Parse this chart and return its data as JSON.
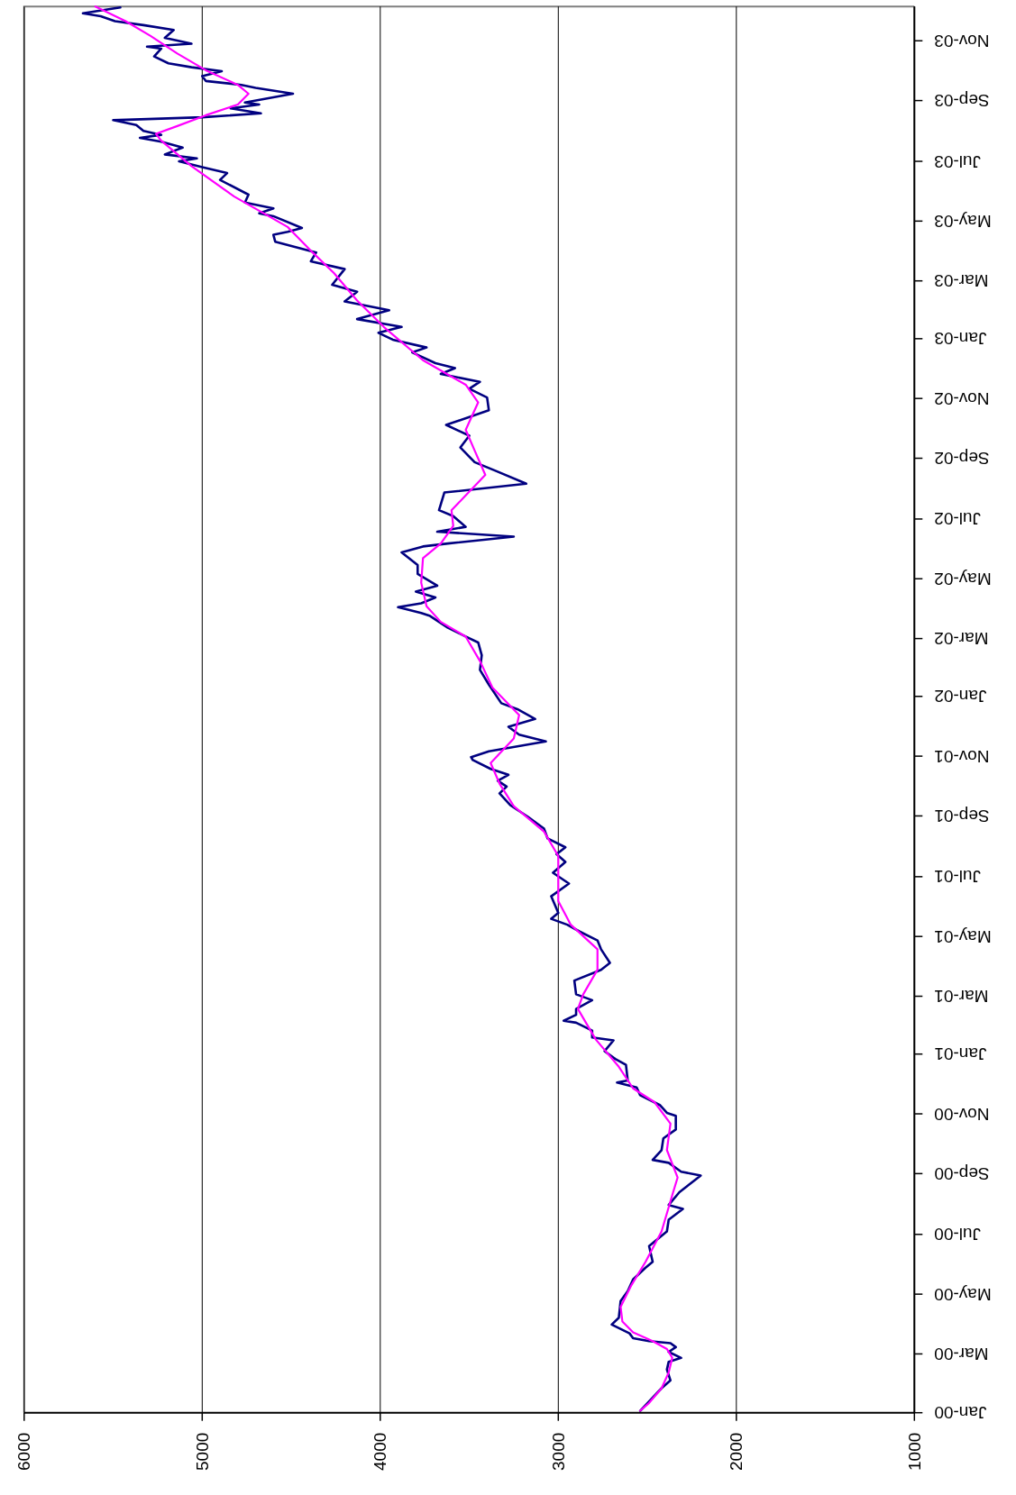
{
  "chart_data": {
    "type": "line",
    "orientation": "horizontal",
    "ylim": [
      "2000-01-01",
      "2003-12-06"
    ],
    "yticks": [
      {
        "value": "2000-01-01",
        "label": "Jan-00"
      },
      {
        "value": "2000-03-01",
        "label": "Mar-00"
      },
      {
        "value": "2000-05-01",
        "label": "May-00"
      },
      {
        "value": "2000-07-01",
        "label": "Jul-00"
      },
      {
        "value": "2000-09-01",
        "label": "Sep-00"
      },
      {
        "value": "2000-11-01",
        "label": "Nov-00"
      },
      {
        "value": "2001-01-01",
        "label": "Jan-01"
      },
      {
        "value": "2001-03-01",
        "label": "Mar-01"
      },
      {
        "value": "2001-05-01",
        "label": "May-01"
      },
      {
        "value": "2001-07-01",
        "label": "Jul-01"
      },
      {
        "value": "2001-09-01",
        "label": "Sep-01"
      },
      {
        "value": "2001-11-01",
        "label": "Nov-01"
      },
      {
        "value": "2002-01-01",
        "label": "Jan-02"
      },
      {
        "value": "2002-03-01",
        "label": "Mar-02"
      },
      {
        "value": "2002-05-01",
        "label": "May-02"
      },
      {
        "value": "2002-07-01",
        "label": "Jul-02"
      },
      {
        "value": "2002-09-01",
        "label": "Sep-02"
      },
      {
        "value": "2002-11-01",
        "label": "Nov-02"
      },
      {
        "value": "2003-01-01",
        "label": "Jan-03"
      },
      {
        "value": "2003-03-01",
        "label": "Mar-03"
      },
      {
        "value": "2003-05-01",
        "label": "May-03"
      },
      {
        "value": "2003-07-01",
        "label": "Jul-03"
      },
      {
        "value": "2003-09-01",
        "label": "Sep-03"
      },
      {
        "value": "2003-11-01",
        "label": "Nov-03"
      }
    ],
    "xlim": [
      6000,
      1000
    ],
    "xticks": [
      6000,
      5000,
      4000,
      3000,
      2000,
      1000
    ],
    "grid": "x",
    "series": [
      {
        "color": "#000080",
        "x": [
          "2000-01-03",
          "2000-01-26",
          "2000-02-03",
          "2000-02-14",
          "2000-02-22",
          "2000-02-26",
          "2000-03-03",
          "2000-03-08",
          "2000-03-12",
          "2000-03-14",
          "2000-03-17",
          "2000-03-22",
          "2000-03-31",
          "2000-04-07",
          "2000-04-24",
          "2000-05-04",
          "2000-05-16",
          "2000-05-28",
          "2000-06-03",
          "2000-06-19",
          "2000-07-04",
          "2000-07-16",
          "2000-07-27",
          "2000-07-31",
          "2000-08-13",
          "2000-08-30",
          "2000-09-03",
          "2000-09-12",
          "2000-09-15",
          "2000-09-25",
          "2000-10-07",
          "2000-10-16",
          "2000-10-30",
          "2000-11-02",
          "2000-11-10",
          "2000-11-20",
          "2000-11-28",
          "2000-12-03",
          "2000-12-05",
          "2000-12-21",
          "2000-12-27",
          "2001-01-04",
          "2001-01-15",
          "2001-01-18",
          "2001-01-25",
          "2001-02-02",
          "2001-02-04",
          "2001-02-10",
          "2001-02-16",
          "2001-02-25",
          "2001-03-03",
          "2001-03-17",
          "2001-03-28",
          "2001-04-04",
          "2001-04-18",
          "2001-04-27",
          "2001-05-06",
          "2001-05-13",
          "2001-05-19",
          "2001-05-25",
          "2001-06-11",
          "2001-06-24",
          "2001-07-05",
          "2001-07-16",
          "2001-07-24",
          "2001-07-31",
          "2001-08-09",
          "2001-08-19",
          "2001-08-31",
          "2001-09-12",
          "2001-09-24",
          "2001-10-01",
          "2001-10-07",
          "2001-10-13",
          "2001-10-19",
          "2001-10-28",
          "2001-10-31",
          "2001-11-06",
          "2001-11-16",
          "2001-11-23",
          "2001-12-01",
          "2001-12-09",
          "2001-12-19",
          "2001-12-25",
          "2002-01-13",
          "2002-01-28",
          "2002-02-12",
          "2002-02-25",
          "2002-03-03",
          "2002-03-12",
          "2002-03-24",
          "2002-03-27",
          "2002-04-02",
          "2002-04-06",
          "2002-04-12",
          "2002-04-18",
          "2002-04-24",
          "2002-05-06",
          "2002-05-15",
          "2002-05-28",
          "2002-06-03",
          "2002-06-06",
          "2002-06-13",
          "2002-06-18",
          "2002-06-23",
          "2002-07-04",
          "2002-07-10",
          "2002-07-28",
          "2002-08-06",
          "2002-08-19",
          "2002-08-28",
          "2002-09-12",
          "2002-09-24",
          "2002-10-05",
          "2002-10-20",
          "2002-11-02",
          "2002-11-11",
          "2002-11-18",
          "2002-11-26",
          "2002-12-02",
          "2002-12-07",
          "2002-12-18",
          "2002-12-23",
          "2002-12-31",
          "2003-01-07",
          "2003-01-13",
          "2003-01-21",
          "2003-01-30",
          "2003-02-08",
          "2003-02-18",
          "2003-02-25",
          "2003-03-13",
          "2003-03-21",
          "2003-03-30",
          "2003-04-10",
          "2003-04-17",
          "2003-04-20",
          "2003-04-24",
          "2003-05-06",
          "2003-05-09",
          "2003-05-14",
          "2003-05-20",
          "2003-05-28",
          "2003-06-12",
          "2003-06-19",
          "2003-06-25",
          "2003-07-01",
          "2003-07-04",
          "2003-07-08",
          "2003-07-15",
          "2003-07-21",
          "2003-07-25",
          "2003-07-28",
          "2003-08-01",
          "2003-08-07",
          "2003-08-12",
          "2003-08-15",
          "2003-08-19",
          "2003-08-24",
          "2003-08-28",
          "2003-08-30",
          "2003-09-08",
          "2003-09-14",
          "2003-09-17",
          "2003-09-21",
          "2003-09-26",
          "2003-10-01",
          "2003-10-05",
          "2003-10-09",
          "2003-10-16",
          "2003-10-24",
          "2003-10-26",
          "2003-10-29",
          "2003-11-04",
          "2003-11-12",
          "2003-11-17",
          "2003-11-21",
          "2003-11-26",
          "2003-11-29",
          "2003-12-05"
        ],
        "values": [
          2540,
          2420,
          2370,
          2390,
          2380,
          2310,
          2380,
          2340,
          2370,
          2490,
          2580,
          2600,
          2700,
          2660,
          2650,
          2610,
          2580,
          2510,
          2470,
          2490,
          2390,
          2380,
          2300,
          2380,
          2320,
          2200,
          2310,
          2380,
          2470,
          2420,
          2410,
          2340,
          2340,
          2390,
          2430,
          2540,
          2560,
          2670,
          2610,
          2620,
          2680,
          2740,
          2690,
          2810,
          2810,
          2900,
          2970,
          2900,
          2900,
          2810,
          2900,
          2910,
          2760,
          2710,
          2760,
          2780,
          2880,
          2950,
          3040,
          3000,
          3040,
          2940,
          3030,
          2960,
          3010,
          2960,
          3060,
          3080,
          3170,
          3270,
          3330,
          3290,
          3340,
          3280,
          3380,
          3480,
          3490,
          3390,
          3070,
          3220,
          3280,
          3130,
          3230,
          3320,
          3390,
          3440,
          3430,
          3450,
          3520,
          3620,
          3720,
          3770,
          3900,
          3770,
          3690,
          3800,
          3680,
          3790,
          3790,
          3880,
          3760,
          3620,
          3250,
          3680,
          3520,
          3590,
          3670,
          3640,
          3180,
          3350,
          3470,
          3550,
          3500,
          3630,
          3390,
          3400,
          3500,
          3440,
          3660,
          3580,
          3690,
          3820,
          3740,
          3930,
          4010,
          3880,
          4130,
          3950,
          4200,
          4130,
          4270,
          4200,
          4390,
          4360,
          4590,
          4600,
          4520,
          4440,
          4600,
          4680,
          4600,
          4760,
          4740,
          4900,
          4860,
          5000,
          5130,
          5030,
          5210,
          5110,
          5230,
          5350,
          5230,
          5330,
          5370,
          5500,
          5000,
          4670,
          4840,
          4680,
          4760,
          4490,
          4700,
          4780,
          4980,
          5000,
          4890,
          5060,
          5190,
          5270,
          5230,
          5310,
          5060,
          5210,
          5160,
          5330,
          5490,
          5570,
          5670,
          5460
        ]
      },
      {
        "color": "#ff00ff",
        "x": [
          "2000-01-03",
          "2000-01-11",
          "2000-01-26",
          "2000-02-11",
          "2000-02-26",
          "2000-03-06",
          "2000-03-14",
          "2000-03-23",
          "2000-04-03",
          "2000-04-18",
          "2000-05-10",
          "2000-06-03",
          "2000-07-04",
          "2000-08-10",
          "2000-08-28",
          "2000-09-25",
          "2000-10-22",
          "2000-11-13",
          "2000-11-27",
          "2000-12-19",
          "2001-01-16",
          "2001-02-16",
          "2001-03-03",
          "2001-03-28",
          "2001-04-18",
          "2001-05-13",
          "2001-06-06",
          "2001-07-22",
          "2001-08-16",
          "2001-09-11",
          "2001-10-04",
          "2001-10-25",
          "2001-11-19",
          "2001-12-13",
          "2002-01-10",
          "2002-02-06",
          "2002-03-03",
          "2002-03-18",
          "2002-04-03",
          "2002-04-27",
          "2002-05-22",
          "2002-06-06",
          "2002-06-24",
          "2002-07-10",
          "2002-07-25",
          "2002-08-15",
          "2002-09-09",
          "2002-09-30",
          "2002-10-28",
          "2002-11-15",
          "2002-12-10",
          "2003-01-13",
          "2003-02-09",
          "2003-03-09",
          "2003-03-30",
          "2003-04-25",
          "2003-05-26",
          "2003-06-26",
          "2003-07-22",
          "2003-07-29",
          "2003-08-06",
          "2003-08-17",
          "2003-08-28",
          "2003-09-08",
          "2003-09-17",
          "2003-10-02",
          "2003-10-19",
          "2003-11-06",
          "2003-11-21",
          "2003-12-06"
        ],
        "values": [
          2540,
          2490,
          2420,
          2380,
          2360,
          2390,
          2470,
          2580,
          2640,
          2650,
          2590,
          2510,
          2420,
          2360,
          2330,
          2390,
          2370,
          2460,
          2580,
          2660,
          2790,
          2890,
          2860,
          2780,
          2780,
          2930,
          3000,
          3000,
          3080,
          3250,
          3330,
          3380,
          3250,
          3220,
          3370,
          3440,
          3520,
          3660,
          3740,
          3770,
          3760,
          3660,
          3590,
          3600,
          3520,
          3410,
          3470,
          3520,
          3450,
          3520,
          3760,
          3980,
          4130,
          4260,
          4380,
          4520,
          4820,
          5060,
          5230,
          5260,
          5140,
          4980,
          4800,
          4740,
          4800,
          4980,
          5140,
          5290,
          5430,
          5600
        ]
      }
    ]
  }
}
